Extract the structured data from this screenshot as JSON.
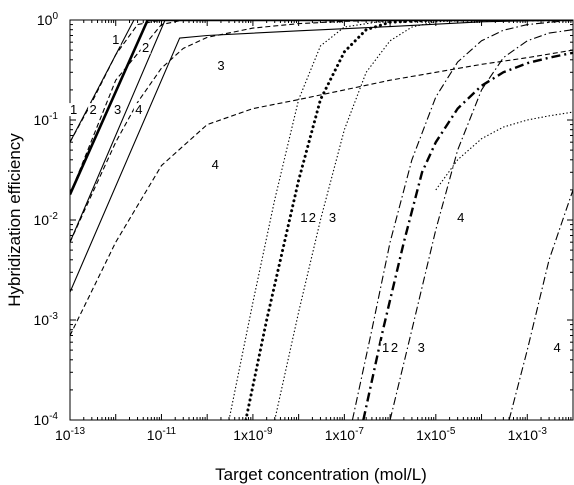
{
  "chart_data": {
    "type": "line",
    "title": "",
    "xlabel": "Target concentration (mol/L)",
    "ylabel": "Hybridization efficiency",
    "x_scale": "log",
    "y_scale": "log",
    "xlim": [
      1e-13,
      0.01
    ],
    "ylim": [
      0.0001,
      1
    ],
    "grid": false,
    "legend": "none",
    "x_ticks": [
      {
        "value": 1e-13,
        "mant": "10",
        "exp": "-13"
      },
      {
        "value": 1e-11,
        "mant": "10",
        "exp": "-11"
      },
      {
        "value": 1e-09,
        "text": "1x10",
        "exp": "-9"
      },
      {
        "value": 1e-07,
        "text": "1x10",
        "exp": "-7"
      },
      {
        "value": 1e-05,
        "text": "1x10",
        "exp": "-5"
      },
      {
        "value": 0.001,
        "text": "1x10",
        "exp": "-3"
      }
    ],
    "y_ticks": [
      {
        "value": 0.0001,
        "mant": "10",
        "exp": "-4"
      },
      {
        "value": 0.001,
        "mant": "10",
        "exp": "-3"
      },
      {
        "value": 0.01,
        "mant": "10",
        "exp": "-2"
      },
      {
        "value": 0.1,
        "mant": "10",
        "exp": "-1"
      },
      {
        "value": 1,
        "mant": "10",
        "exp": "0"
      }
    ],
    "series": [
      {
        "style": "solid-thin",
        "x": [
          1e-13,
          2.5e-12,
          1e-10,
          1e-06,
          0.0001,
          0.01
        ],
        "y": [
          0.06,
          1,
          1,
          1,
          1,
          1
        ]
      },
      {
        "style": "solid-thick",
        "x": [
          1e-13,
          5e-12,
          1e-10,
          1e-06,
          0.01
        ],
        "y": [
          0.018,
          1,
          1,
          1,
          1
        ]
      },
      {
        "style": "solid-thin",
        "x": [
          1e-13,
          1.2e-11,
          1e-09,
          1e-06,
          0.01
        ],
        "y": [
          0.006,
          1,
          1,
          1,
          1
        ]
      },
      {
        "style": "solid-thin",
        "x": [
          1e-13,
          2.5e-11,
          1e-10,
          1e-08,
          1e-06,
          0.0001,
          0.01
        ],
        "y": [
          0.0019,
          0.66,
          0.7,
          0.78,
          0.86,
          0.96,
          1
        ]
      },
      {
        "style": "dashed",
        "x": [
          1e-13,
          3e-13,
          1e-12,
          3e-12,
          1e-11,
          1e-10,
          1e-08,
          1e-06,
          0.01
        ],
        "y": [
          0.06,
          0.15,
          0.45,
          0.9,
          1,
          1,
          1,
          1,
          1
        ]
      },
      {
        "style": "dashed",
        "x": [
          1e-13,
          1e-12,
          1e-11,
          3e-11,
          1e-10,
          1e-09,
          1e-08,
          1e-06,
          0.01
        ],
        "y": [
          0.018,
          0.25,
          0.9,
          1,
          1,
          1,
          1,
          1,
          1
        ]
      },
      {
        "style": "dashed",
        "x": [
          1e-13,
          1e-12,
          3e-12,
          1e-11,
          3e-11,
          1e-10,
          1e-09,
          1e-08,
          1e-07,
          1e-06,
          0.01
        ],
        "y": [
          0.006,
          0.06,
          0.15,
          0.33,
          0.52,
          0.67,
          0.83,
          0.92,
          0.97,
          1,
          1
        ]
      },
      {
        "style": "dashed",
        "x": [
          1e-13,
          1e-12,
          1e-11,
          1e-10,
          1e-09,
          1e-08,
          1e-07,
          1e-06,
          1e-05,
          0.0001,
          0.001,
          0.01
        ],
        "y": [
          0.0007,
          0.006,
          0.035,
          0.09,
          0.13,
          0.16,
          0.2,
          0.25,
          0.3,
          0.36,
          0.42,
          0.5
        ]
      },
      {
        "style": "dotted-thin",
        "x": [
          3e-10,
          1e-09,
          3e-09,
          1e-08,
          3e-08,
          1e-07,
          1e-06,
          1e-05,
          0.01
        ],
        "y": [
          0.0001,
          0.0015,
          0.016,
          0.16,
          0.55,
          0.85,
          1,
          1,
          1
        ]
      },
      {
        "style": "dotted-thick",
        "x": [
          7e-10,
          2e-09,
          1e-08,
          3e-08,
          1e-07,
          3e-07,
          1e-06,
          1e-05,
          0.01
        ],
        "y": [
          0.0001,
          0.001,
          0.025,
          0.16,
          0.48,
          0.8,
          0.95,
          1,
          1
        ]
      },
      {
        "style": "dotted-thin",
        "x": [
          3e-09,
          1e-08,
          3e-08,
          1e-07,
          3e-07,
          1e-06,
          3e-06,
          1e-05,
          0.0001,
          0.01
        ],
        "y": [
          0.0001,
          0.0012,
          0.01,
          0.08,
          0.3,
          0.62,
          0.85,
          0.96,
          1,
          1
        ]
      },
      {
        "style": "dotted-thin",
        "x": [
          1e-05,
          3e-05,
          0.0001,
          0.0003,
          0.001,
          0.003,
          0.01
        ],
        "y": [
          0.02,
          0.04,
          0.065,
          0.085,
          0.1,
          0.11,
          0.12
        ]
      },
      {
        "style": "dashdot-thin",
        "x": [
          1.5e-07,
          4e-07,
          1e-06,
          3e-06,
          1e-05,
          3e-05,
          0.0001,
          0.0003,
          0.001,
          0.01
        ],
        "y": [
          0.0001,
          0.0008,
          0.006,
          0.04,
          0.17,
          0.38,
          0.62,
          0.79,
          0.9,
          1
        ]
      },
      {
        "style": "dashdot-thick",
        "x": [
          2.6e-07,
          7e-07,
          2e-06,
          5e-06,
          1e-05,
          3e-05,
          0.0001,
          0.0003,
          0.001,
          0.003,
          0.01
        ],
        "y": [
          0.0001,
          0.0008,
          0.006,
          0.03,
          0.06,
          0.13,
          0.22,
          0.3,
          0.37,
          0.42,
          0.47
        ]
      },
      {
        "style": "dashdot-thin",
        "x": [
          1e-06,
          3e-06,
          1e-05,
          3e-05,
          0.0001,
          0.0003,
          0.001,
          0.003,
          0.01
        ],
        "y": [
          0.0001,
          0.0008,
          0.008,
          0.05,
          0.2,
          0.42,
          0.62,
          0.74,
          0.8
        ]
      },
      {
        "style": "dashdot-thin",
        "x": [
          0.0004,
          0.001,
          0.003,
          0.01
        ],
        "y": [
          0.0001,
          0.0005,
          0.004,
          0.02
        ]
      }
    ],
    "curve_labels": [
      {
        "text": "1",
        "x": 1e-12,
        "y": 0.6
      },
      {
        "text": "2",
        "x": 4.5e-12,
        "y": 0.5
      },
      {
        "text": "3",
        "x": 2e-10,
        "y": 0.33
      },
      {
        "text": "1",
        "x": 1.2e-13,
        "y": 0.12
      },
      {
        "text": "2",
        "x": 3.2e-13,
        "y": 0.12
      },
      {
        "text": "3",
        "x": 1.1e-12,
        "y": 0.12
      },
      {
        "text": "4",
        "x": 3.2e-12,
        "y": 0.12
      },
      {
        "text": "4",
        "x": 1.5e-10,
        "y": 0.034
      },
      {
        "text": "1",
        "x": 1.3e-08,
        "y": 0.01
      },
      {
        "text": "2",
        "x": 2e-08,
        "y": 0.01
      },
      {
        "text": "3",
        "x": 5.5e-08,
        "y": 0.01
      },
      {
        "text": "4",
        "x": 3.5e-05,
        "y": 0.01
      },
      {
        "text": "1",
        "x": 8e-07,
        "y": 0.0005
      },
      {
        "text": "2",
        "x": 1.25e-06,
        "y": 0.0005
      },
      {
        "text": "3",
        "x": 4.8e-06,
        "y": 0.0005
      },
      {
        "text": "4",
        "x": 0.0045,
        "y": 0.0005
      }
    ]
  }
}
